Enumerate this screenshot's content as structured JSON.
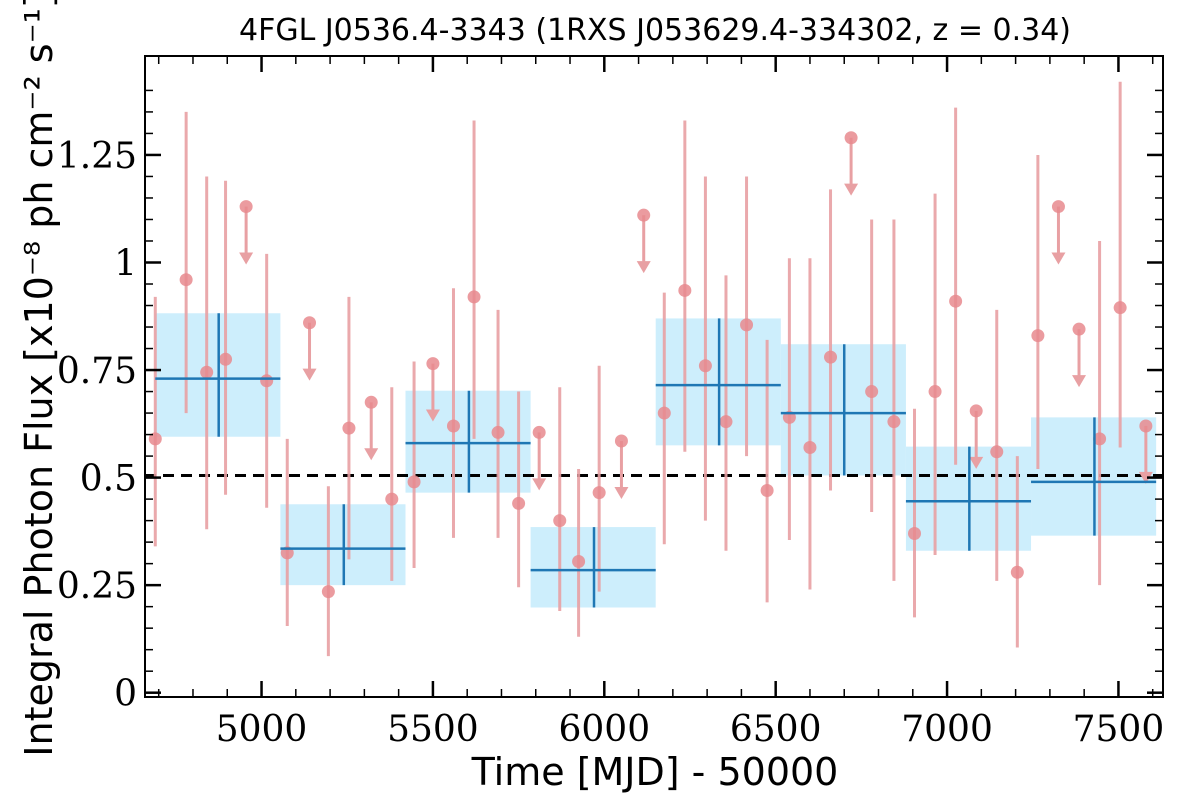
{
  "chart_data": {
    "type": "scatter",
    "title": "4FGL J0536.4-3343 (1RXS J053629.4-334302, z = 0.34)",
    "xlabel": "Time [MJD] - 50000",
    "ylabel": "Integral Photon Flux [x10⁻⁸ ph cm⁻² s⁻¹]",
    "xlim": [
      4660,
      7630
    ],
    "ylim": [
      -0.01,
      1.48
    ],
    "x_ticks": [
      5000,
      5500,
      6000,
      6500,
      7000,
      7500
    ],
    "x_tick_labels": [
      "5000",
      "5500",
      "6000",
      "6500",
      "7000",
      "7500"
    ],
    "y_ticks": [
      0,
      0.25,
      0.5,
      0.75,
      1,
      1.25
    ],
    "y_tick_labels": [
      "0",
      "0.25",
      "0.5",
      "0.75",
      "1",
      "1.25"
    ],
    "reference_line": {
      "y": 0.505,
      "style": "dashed",
      "color": "#000000"
    },
    "colors": {
      "fine_points": "#e88a8e",
      "fine_errors": "#e8a0a3",
      "binned_marker": "#1f77b4",
      "binned_band": "#cdeefc"
    },
    "series": [
      {
        "kind": "measurements",
        "points": [
          {
            "x": 4690,
            "y": 0.59,
            "lo": 0.34,
            "hi": 0.92
          },
          {
            "x": 4780,
            "y": 0.96,
            "lo": 0.65,
            "hi": 1.35
          },
          {
            "x": 4840,
            "y": 0.745,
            "lo": 0.38,
            "hi": 1.2
          },
          {
            "x": 4895,
            "y": 0.775,
            "lo": 0.46,
            "hi": 1.19
          },
          {
            "x": 5015,
            "y": 0.725,
            "lo": 0.43,
            "hi": 1.02
          },
          {
            "x": 5075,
            "y": 0.325,
            "lo": 0.155,
            "hi": 0.59
          },
          {
            "x": 5195,
            "y": 0.235,
            "lo": 0.085,
            "hi": 0.48
          },
          {
            "x": 5255,
            "y": 0.615,
            "lo": 0.31,
            "hi": 0.92
          },
          {
            "x": 5380,
            "y": 0.45,
            "lo": 0.26,
            "hi": 0.71
          },
          {
            "x": 5445,
            "y": 0.49,
            "lo": 0.29,
            "hi": 0.77
          },
          {
            "x": 5560,
            "y": 0.62,
            "lo": 0.36,
            "hi": 0.94
          },
          {
            "x": 5620,
            "y": 0.92,
            "lo": 0.59,
            "hi": 1.33
          },
          {
            "x": 5690,
            "y": 0.605,
            "lo": 0.36,
            "hi": 0.89
          },
          {
            "x": 5750,
            "y": 0.44,
            "lo": 0.245,
            "hi": 0.7
          },
          {
            "x": 5870,
            "y": 0.4,
            "lo": 0.19,
            "hi": 0.71
          },
          {
            "x": 5925,
            "y": 0.305,
            "lo": 0.13,
            "hi": 0.52
          },
          {
            "x": 5985,
            "y": 0.465,
            "lo": 0.235,
            "hi": 0.76
          },
          {
            "x": 6175,
            "y": 0.65,
            "lo": 0.345,
            "hi": 0.93
          },
          {
            "x": 6235,
            "y": 0.935,
            "lo": 0.56,
            "hi": 1.33
          },
          {
            "x": 6295,
            "y": 0.76,
            "lo": 0.4,
            "hi": 1.2
          },
          {
            "x": 6355,
            "y": 0.63,
            "lo": 0.33,
            "hi": 0.97
          },
          {
            "x": 6415,
            "y": 0.855,
            "lo": 0.55,
            "hi": 1.2
          },
          {
            "x": 6475,
            "y": 0.47,
            "lo": 0.21,
            "hi": 0.82
          },
          {
            "x": 6540,
            "y": 0.64,
            "lo": 0.355,
            "hi": 1.01
          },
          {
            "x": 6600,
            "y": 0.57,
            "lo": 0.24,
            "hi": 1.01
          },
          {
            "x": 6660,
            "y": 0.78,
            "lo": 0.47,
            "hi": 1.17
          },
          {
            "x": 6780,
            "y": 0.7,
            "lo": 0.42,
            "hi": 1.1
          },
          {
            "x": 6845,
            "y": 0.63,
            "lo": 0.26,
            "hi": 1.1
          },
          {
            "x": 6905,
            "y": 0.37,
            "lo": 0.175,
            "hi": 0.66
          },
          {
            "x": 6965,
            "y": 0.7,
            "lo": 0.32,
            "hi": 1.16
          },
          {
            "x": 7025,
            "y": 0.91,
            "lo": 0.53,
            "hi": 1.36
          },
          {
            "x": 7145,
            "y": 0.56,
            "lo": 0.26,
            "hi": 0.89
          },
          {
            "x": 7205,
            "y": 0.28,
            "lo": 0.105,
            "hi": 0.55
          },
          {
            "x": 7265,
            "y": 0.83,
            "lo": 0.52,
            "hi": 1.25
          },
          {
            "x": 7445,
            "y": 0.59,
            "lo": 0.25,
            "hi": 1.05
          },
          {
            "x": 7505,
            "y": 0.895,
            "lo": 0.57,
            "hi": 1.42
          }
        ]
      },
      {
        "kind": "upper_limits",
        "points": [
          {
            "x": 4955,
            "y": 1.13
          },
          {
            "x": 5140,
            "y": 0.86
          },
          {
            "x": 5320,
            "y": 0.675
          },
          {
            "x": 5500,
            "y": 0.765
          },
          {
            "x": 5810,
            "y": 0.605
          },
          {
            "x": 6050,
            "y": 0.585
          },
          {
            "x": 6115,
            "y": 1.11
          },
          {
            "x": 6720,
            "y": 1.29
          },
          {
            "x": 7085,
            "y": 0.655
          },
          {
            "x": 7325,
            "y": 1.13
          },
          {
            "x": 7385,
            "y": 0.845
          },
          {
            "x": 7580,
            "y": 0.62
          }
        ]
      },
      {
        "kind": "binned",
        "bins": [
          {
            "x0": 4690,
            "x1": 5055,
            "xc": 4875,
            "y": 0.73,
            "lo": 0.595,
            "hi": 0.882,
            "band_lo": 0.595,
            "band_hi": 0.882
          },
          {
            "x0": 5055,
            "x1": 5420,
            "xc": 5240,
            "y": 0.335,
            "lo": 0.25,
            "hi": 0.438,
            "band_lo": 0.25,
            "band_hi": 0.438
          },
          {
            "x0": 5420,
            "x1": 5785,
            "xc": 5605,
            "y": 0.58,
            "lo": 0.465,
            "hi": 0.702,
            "band_lo": 0.465,
            "band_hi": 0.702
          },
          {
            "x0": 5785,
            "x1": 6150,
            "xc": 5970,
            "y": 0.285,
            "lo": 0.198,
            "hi": 0.385,
            "band_lo": 0.198,
            "band_hi": 0.385
          },
          {
            "x0": 6150,
            "x1": 6515,
            "xc": 6335,
            "y": 0.715,
            "lo": 0.575,
            "hi": 0.87,
            "band_lo": 0.575,
            "band_hi": 0.87
          },
          {
            "x0": 6515,
            "x1": 6880,
            "xc": 6700,
            "y": 0.65,
            "lo": 0.505,
            "hi": 0.81,
            "band_lo": 0.505,
            "band_hi": 0.81
          },
          {
            "x0": 6880,
            "x1": 7245,
            "xc": 7065,
            "y": 0.445,
            "lo": 0.33,
            "hi": 0.572,
            "band_lo": 0.33,
            "band_hi": 0.572
          },
          {
            "x0": 7245,
            "x1": 7610,
            "xc": 7430,
            "y": 0.49,
            "lo": 0.365,
            "hi": 0.64,
            "band_lo": 0.365,
            "band_hi": 0.64
          }
        ]
      }
    ],
    "grid": false,
    "legend": "none"
  }
}
